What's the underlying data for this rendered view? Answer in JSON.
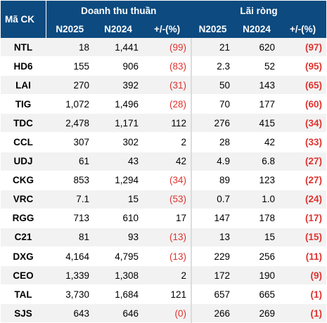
{
  "header": {
    "code_label": "Mã CK",
    "revenue_group": "Doanh thu thuần",
    "profit_group": "Lãi ròng",
    "col_n2025": "N2025",
    "col_n2024": "N2024",
    "col_change": "+/-(%)"
  },
  "rows": [
    {
      "code": "NTL",
      "rev_2025": "18",
      "rev_2024": "1,441",
      "rev_chg": "(99)",
      "rev_neg": true,
      "np_2025": "21",
      "np_2024": "620",
      "np_chg": "(97)",
      "np_neg": true
    },
    {
      "code": "HD6",
      "rev_2025": "155",
      "rev_2024": "906",
      "rev_chg": "(83)",
      "rev_neg": true,
      "np_2025": "2.3",
      "np_2024": "52",
      "np_chg": "(95)",
      "np_neg": true
    },
    {
      "code": "LAI",
      "rev_2025": "270",
      "rev_2024": "392",
      "rev_chg": "(31)",
      "rev_neg": true,
      "np_2025": "50",
      "np_2024": "143",
      "np_chg": "(65)",
      "np_neg": true
    },
    {
      "code": "TIG",
      "rev_2025": "1,072",
      "rev_2024": "1,496",
      "rev_chg": "(28)",
      "rev_neg": true,
      "np_2025": "70",
      "np_2024": "177",
      "np_chg": "(60)",
      "np_neg": true
    },
    {
      "code": "TDC",
      "rev_2025": "2,478",
      "rev_2024": "1,171",
      "rev_chg": "112",
      "rev_neg": false,
      "np_2025": "276",
      "np_2024": "415",
      "np_chg": "(34)",
      "np_neg": true
    },
    {
      "code": "CCL",
      "rev_2025": "307",
      "rev_2024": "302",
      "rev_chg": "2",
      "rev_neg": false,
      "np_2025": "28",
      "np_2024": "42",
      "np_chg": "(33)",
      "np_neg": true
    },
    {
      "code": "UDJ",
      "rev_2025": "61",
      "rev_2024": "43",
      "rev_chg": "42",
      "rev_neg": false,
      "np_2025": "4.9",
      "np_2024": "6.8",
      "np_chg": "(27)",
      "np_neg": true
    },
    {
      "code": "CKG",
      "rev_2025": "853",
      "rev_2024": "1,294",
      "rev_chg": "(34)",
      "rev_neg": true,
      "np_2025": "89",
      "np_2024": "123",
      "np_chg": "(27)",
      "np_neg": true
    },
    {
      "code": "VRC",
      "rev_2025": "7.1",
      "rev_2024": "15",
      "rev_chg": "(53)",
      "rev_neg": true,
      "np_2025": "0.7",
      "np_2024": "1.0",
      "np_chg": "(24)",
      "np_neg": true
    },
    {
      "code": "RGG",
      "rev_2025": "713",
      "rev_2024": "610",
      "rev_chg": "17",
      "rev_neg": false,
      "np_2025": "147",
      "np_2024": "178",
      "np_chg": "(17)",
      "np_neg": true
    },
    {
      "code": "C21",
      "rev_2025": "81",
      "rev_2024": "93",
      "rev_chg": "(13)",
      "rev_neg": true,
      "np_2025": "13",
      "np_2024": "15",
      "np_chg": "(15)",
      "np_neg": true
    },
    {
      "code": "DXG",
      "rev_2025": "4,164",
      "rev_2024": "4,795",
      "rev_chg": "(13)",
      "rev_neg": true,
      "np_2025": "229",
      "np_2024": "256",
      "np_chg": "(11)",
      "np_neg": true
    },
    {
      "code": "CEO",
      "rev_2025": "1,339",
      "rev_2024": "1,308",
      "rev_chg": "2",
      "rev_neg": false,
      "np_2025": "172",
      "np_2024": "190",
      "np_chg": "(9)",
      "np_neg": true
    },
    {
      "code": "TAL",
      "rev_2025": "3,730",
      "rev_2024": "1,684",
      "rev_chg": "121",
      "rev_neg": false,
      "np_2025": "657",
      "np_2024": "665",
      "np_chg": "(1)",
      "np_neg": true
    },
    {
      "code": "SJS",
      "rev_2025": "643",
      "rev_2024": "646",
      "rev_chg": "(0)",
      "rev_neg": true,
      "np_2025": "266",
      "np_2024": "269",
      "np_chg": "(1)",
      "np_neg": true
    }
  ],
  "colors": {
    "header_bg": "#0c4a7f",
    "negative_text": "#e0322e",
    "stripe": "#f2f2f2"
  }
}
